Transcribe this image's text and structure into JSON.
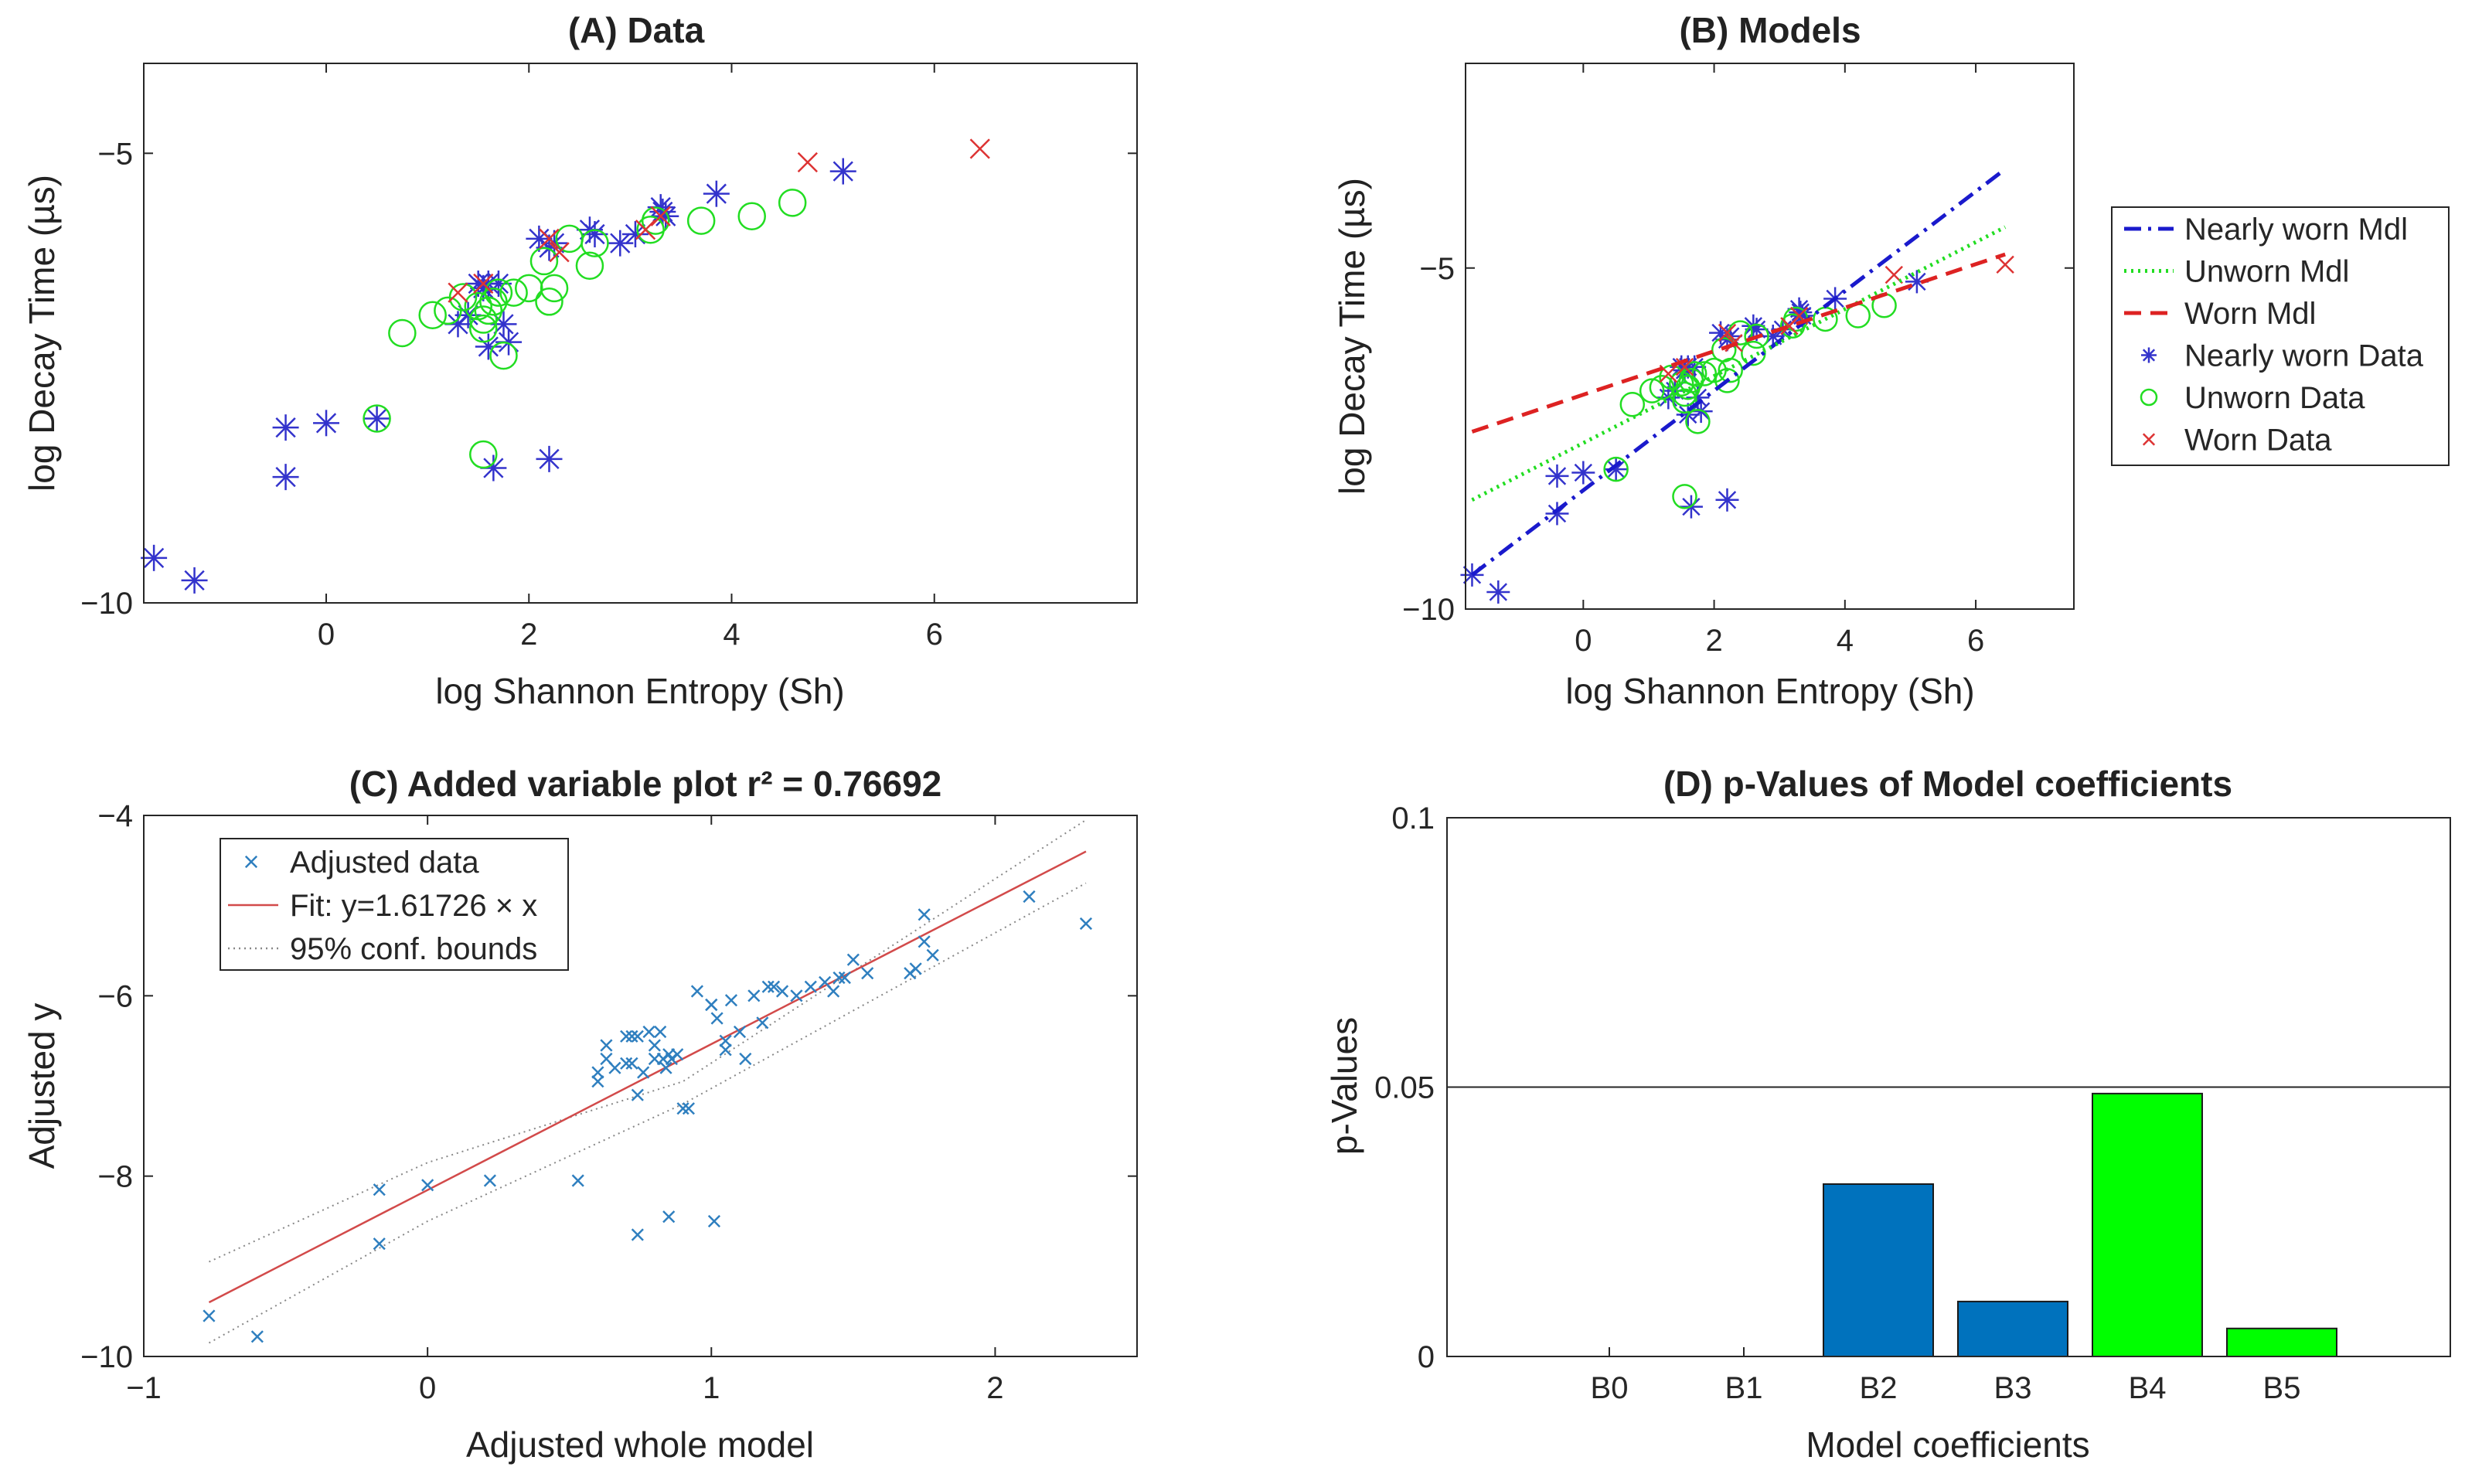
{
  "chart_data": [
    {
      "panel": "A",
      "type": "scatter",
      "title": "(A) Data",
      "xlabel": "log Shannon Entropy (Sh)",
      "ylabel": "log Decay Time (µs)",
      "xlim": [
        -1.8,
        8.0
      ],
      "ylim": [
        -10.0,
        -4.0
      ],
      "xticks": [
        0,
        2,
        4,
        6
      ],
      "xtick_labels": [
        "0",
        "2",
        "4",
        "6"
      ],
      "yticks": [
        -10,
        -5
      ],
      "ytick_labels": [
        "−10",
        "−5"
      ],
      "grid": false,
      "series": [
        {
          "name": "Nearly worn Data",
          "marker": "asterisk",
          "color": "#3333cc",
          "x": [
            -1.7,
            -1.3,
            -0.4,
            -0.4,
            0.0,
            0.5,
            1.4,
            1.3,
            1.5,
            1.55,
            1.6,
            1.7,
            1.75,
            1.8,
            1.6,
            1.65,
            2.1,
            2.25,
            2.2,
            2.6,
            2.65,
            2.9,
            3.05,
            3.3,
            3.32,
            3.35,
            3.85,
            5.1,
            2.2
          ],
          "y": [
            -9.5,
            -9.75,
            -8.05,
            -8.6,
            -8.0,
            -7.95,
            -6.8,
            -6.9,
            -6.45,
            -6.5,
            -6.45,
            -6.45,
            -6.9,
            -7.1,
            -7.15,
            -8.5,
            -5.95,
            -6.0,
            -6.05,
            -5.85,
            -5.9,
            -6.0,
            -5.9,
            -5.6,
            -5.65,
            -5.7,
            -5.45,
            -5.2,
            -8.4
          ]
        },
        {
          "name": "Unworn Data",
          "marker": "circle",
          "color": "#22dd22",
          "x": [
            0.5,
            0.75,
            1.05,
            1.2,
            1.35,
            1.5,
            1.55,
            1.55,
            1.6,
            1.65,
            1.7,
            1.75,
            1.85,
            2.0,
            2.15,
            2.2,
            2.25,
            2.4,
            2.6,
            2.65,
            3.2,
            3.25,
            3.7,
            4.2,
            4.6,
            1.55
          ],
          "y": [
            -7.95,
            -7.0,
            -6.8,
            -6.75,
            -6.6,
            -6.7,
            -6.85,
            -6.95,
            -6.75,
            -6.65,
            -6.55,
            -7.25,
            -6.55,
            -6.5,
            -6.2,
            -6.65,
            -6.5,
            -5.95,
            -6.25,
            -6.0,
            -5.85,
            -5.75,
            -5.75,
            -5.7,
            -5.55,
            -8.35
          ]
        },
        {
          "name": "Worn Data",
          "marker": "x",
          "color": "#dd3333",
          "x": [
            1.3,
            1.55,
            2.2,
            2.3,
            3.15,
            3.3,
            4.75,
            6.45
          ],
          "y": [
            -6.55,
            -6.45,
            -5.95,
            -6.1,
            -5.85,
            -5.7,
            -5.1,
            -4.95
          ]
        }
      ]
    },
    {
      "panel": "B",
      "type": "line",
      "title": "(B) Models",
      "xlabel": "log Shannon Entropy (Sh)",
      "ylabel": "log Decay Time (µs)",
      "xlim": [
        -1.8,
        7.5
      ],
      "ylim": [
        -10.0,
        -2.0
      ],
      "xticks": [
        0,
        2,
        4,
        6
      ],
      "xtick_labels": [
        "0",
        "2",
        "4",
        "6"
      ],
      "yticks": [
        -10,
        -5
      ],
      "ytick_labels": [
        "−10",
        "−5"
      ],
      "legend_position": "outside-right",
      "legend": [
        {
          "label": "Nearly worn Mdl",
          "kind": "dashdot",
          "color": "#1a1acc"
        },
        {
          "label": "Unworn Mdl",
          "kind": "dotted",
          "color": "#22dd22"
        },
        {
          "label": "Worn Mdl",
          "kind": "dashed",
          "color": "#dd2222"
        },
        {
          "label": "Nearly worn Data",
          "kind": "asterisk",
          "color": "#3333cc"
        },
        {
          "label": "Unworn Data",
          "kind": "circle",
          "color": "#22dd22"
        },
        {
          "label": "Worn Data",
          "kind": "x",
          "color": "#dd3333"
        }
      ],
      "lines": [
        {
          "name": "Nearly worn Mdl",
          "x": [
            -1.7,
            6.45
          ],
          "y": [
            -9.5,
            -3.55
          ],
          "style": "dashdot",
          "color": "#1a1acc"
        },
        {
          "name": "Unworn Mdl",
          "x": [
            -1.7,
            6.45
          ],
          "y": [
            -8.4,
            -4.4
          ],
          "style": "dotted",
          "color": "#22dd22"
        },
        {
          "name": "Worn Mdl",
          "x": [
            -1.7,
            6.45
          ],
          "y": [
            -7.4,
            -4.8
          ],
          "style": "dashed",
          "color": "#dd2222"
        }
      ],
      "scatter_from_panel": "A"
    },
    {
      "panel": "C",
      "type": "scatter",
      "title": "(C) Added variable plot r² = 0.76692",
      "xlabel": "Adjusted whole model",
      "ylabel": "Adjusted y",
      "xlim": [
        -1.0,
        2.5
      ],
      "ylim": [
        -10.0,
        -4.0
      ],
      "xticks": [
        -1,
        0,
        1,
        2
      ],
      "xtick_labels": [
        "−1",
        "0",
        "1",
        "2"
      ],
      "yticks": [
        -10,
        -8,
        -6,
        -4
      ],
      "ytick_labels": [
        "−10",
        "−8",
        "−6",
        "−4"
      ],
      "legend_position": "top-left",
      "legend": [
        {
          "label": "Adjusted data",
          "kind": "x",
          "color": "#2f7fbf"
        },
        {
          "label": "Fit: y=1.61726 × x",
          "kind": "solid",
          "color": "#d24a4a"
        },
        {
          "label": "95% conf. bounds",
          "kind": "dotted",
          "color": "#888888"
        }
      ],
      "points": {
        "x": [
          -0.77,
          -0.6,
          -0.17,
          -0.17,
          0.0,
          0.22,
          0.53,
          0.6,
          0.6,
          0.63,
          0.63,
          0.66,
          0.7,
          0.7,
          0.72,
          0.72,
          0.74,
          0.74,
          0.76,
          0.78,
          0.8,
          0.8,
          0.82,
          0.83,
          0.84,
          0.85,
          0.86,
          0.88,
          0.9,
          0.95,
          1.0,
          1.0,
          1.02,
          1.05,
          1.05,
          1.07,
          1.1,
          1.12,
          1.15,
          1.18,
          1.2,
          1.22,
          1.25,
          1.3,
          1.35,
          1.4,
          1.43,
          1.45,
          1.47,
          1.5,
          1.55,
          1.7,
          1.72,
          1.75,
          1.75,
          1.78,
          2.12,
          2.32,
          0.74,
          0.85,
          1.01,
          0.92
        ],
        "y": [
          -9.55,
          -9.78,
          -8.15,
          -8.75,
          -8.1,
          -8.05,
          -8.05,
          -6.85,
          -6.95,
          -6.7,
          -6.55,
          -6.8,
          -6.45,
          -6.75,
          -6.45,
          -6.75,
          -6.45,
          -7.1,
          -6.85,
          -6.4,
          -6.55,
          -6.7,
          -6.4,
          -6.7,
          -6.8,
          -6.65,
          -6.7,
          -6.65,
          -7.25,
          -5.95,
          -6.1,
          -6.1,
          -6.25,
          -6.5,
          -6.6,
          -6.05,
          -6.4,
          -6.7,
          -6.0,
          -6.3,
          -5.9,
          -5.9,
          -5.95,
          -6.0,
          -5.9,
          -5.85,
          -5.95,
          -5.8,
          -5.8,
          -5.6,
          -5.75,
          -5.75,
          -5.7,
          -5.4,
          -5.1,
          -5.55,
          -4.9,
          -5.2,
          -8.65,
          -8.45,
          -8.5,
          -7.25
        ]
      },
      "fit": {
        "x": [
          -0.77,
          2.32
        ],
        "y": [
          -9.4,
          -4.4
        ]
      },
      "bounds_upper": {
        "x": [
          -0.77,
          0.0,
          0.9,
          2.32
        ],
        "y": [
          -8.95,
          -7.85,
          -6.95,
          -4.05
        ]
      },
      "bounds_lower": {
        "x": [
          -0.77,
          0.0,
          0.9,
          2.32
        ],
        "y": [
          -9.85,
          -8.5,
          -7.2,
          -4.75
        ]
      }
    },
    {
      "panel": "D",
      "type": "bar",
      "title": "(D) p-Values of Model coefficients",
      "xlabel": "Model coefficients",
      "ylabel": "p-Values",
      "categories": [
        "B0",
        "B1",
        "B2",
        "B3",
        "B4",
        "B5"
      ],
      "values": [
        0,
        0,
        0.032,
        0.0102,
        0.0488,
        0.0052
      ],
      "bar_colors": [
        "#0072bd",
        "#0072bd",
        "#0072bd",
        "#0072bd",
        "#00ff00",
        "#00ff00"
      ],
      "ylim": [
        0,
        0.1
      ],
      "yticks": [
        0,
        0.05,
        0.1
      ],
      "ytick_labels": [
        "0",
        "0.05",
        "0.1"
      ],
      "reference_line": 0.05
    }
  ]
}
